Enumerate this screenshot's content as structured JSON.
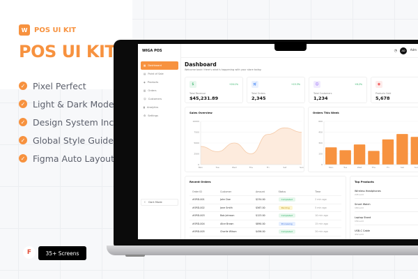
{
  "promo": {
    "brand": "POS UI KIT",
    "logo_letter": "W",
    "headline": "POS UI KIT",
    "features": [
      "Pixel Perfect",
      "Light & Dark Mode",
      "Design System Included",
      "Global Style Guides",
      "Figma Auto Layout"
    ],
    "screens_badge": "35+ Screens",
    "accent": "#f7923f"
  },
  "app": {
    "name": "WIGA POS",
    "nav": [
      "Dashboard",
      "Point of Sale",
      "Products",
      "Orders",
      "Customers",
      "Analytics",
      "Settings"
    ],
    "dark_mode": "Dark Mode",
    "user_initials": "AD",
    "user_name": "Adm",
    "title": "Dashboard",
    "subtitle": "Welcome back! Here's what's happening with your store today.",
    "stats": [
      {
        "label": "Total Revenue",
        "value": "$45,231.89",
        "change": "+20.1%",
        "icon": "dollar-icon",
        "color": "#27ae60"
      },
      {
        "label": "Total Orders",
        "value": "2,345",
        "change": "+15.3%",
        "icon": "cart-icon",
        "color": "#3b82f6"
      },
      {
        "label": "Total Customers",
        "value": "1,234",
        "change": "+8.2%",
        "icon": "users-icon",
        "color": "#8b5cf6"
      },
      {
        "label": "Products Sold",
        "value": "5,678",
        "change": "-",
        "icon": "box-icon",
        "color": "#ef4444"
      }
    ],
    "recent_orders": {
      "title": "Recent Orders",
      "columns": [
        "Order ID",
        "Customer",
        "Amount",
        "Status",
        "Time"
      ],
      "rows": [
        [
          "#ORD-001",
          "John Doe",
          "$234.00",
          "Completed",
          "2 min ago"
        ],
        [
          "#ORD-002",
          "Jane Smith",
          "$567.00",
          "Pending",
          "5 min ago"
        ],
        [
          "#ORD-003",
          "Bob Johnson",
          "$123.00",
          "Completed",
          "10 min ago"
        ],
        [
          "#ORD-004",
          "Alice Brown",
          "$890.00",
          "Processing",
          "15 min ago"
        ],
        [
          "#ORD-005",
          "Charlie Wilson",
          "$456.00",
          "Completed",
          "20 min ago"
        ]
      ]
    },
    "top_products": {
      "title": "Top Products",
      "items": [
        {
          "name": "Wireless Headphones",
          "sold": "245 sold",
          "price": "$12"
        },
        {
          "name": "Smart Watch",
          "sold": "189 sold",
          "price": "$18"
        },
        {
          "name": "Laptop Stand",
          "sold": "156 sold",
          "price": "$4"
        },
        {
          "name": "USB-C Cable",
          "sold": "432 sold",
          "price": "$8"
        }
      ]
    }
  },
  "chart_data": [
    {
      "type": "area",
      "title": "Sales Overview",
      "categories": [
        "Mon",
        "Tue",
        "Wed",
        "Thu",
        "Fri",
        "Sat",
        "Sun"
      ],
      "values": [
        4200,
        3000,
        5000,
        2500,
        7000,
        8500,
        7500
      ],
      "ylim": [
        0,
        10000
      ],
      "yticks": [
        0,
        2500,
        5000,
        7500,
        10000
      ],
      "color": "#f7923f",
      "grid": true
    },
    {
      "type": "bar",
      "title": "Orders This Week",
      "categories": [
        "Mon",
        "Tue",
        "Wed",
        "Thu",
        "Fri",
        "Sat",
        "Sun"
      ],
      "values": [
        240,
        200,
        280,
        190,
        350,
        425,
        385
      ],
      "ylim": [
        0,
        600
      ],
      "yticks": [
        0,
        150,
        300,
        450,
        600
      ],
      "color": "#f7923f",
      "grid": true
    }
  ]
}
